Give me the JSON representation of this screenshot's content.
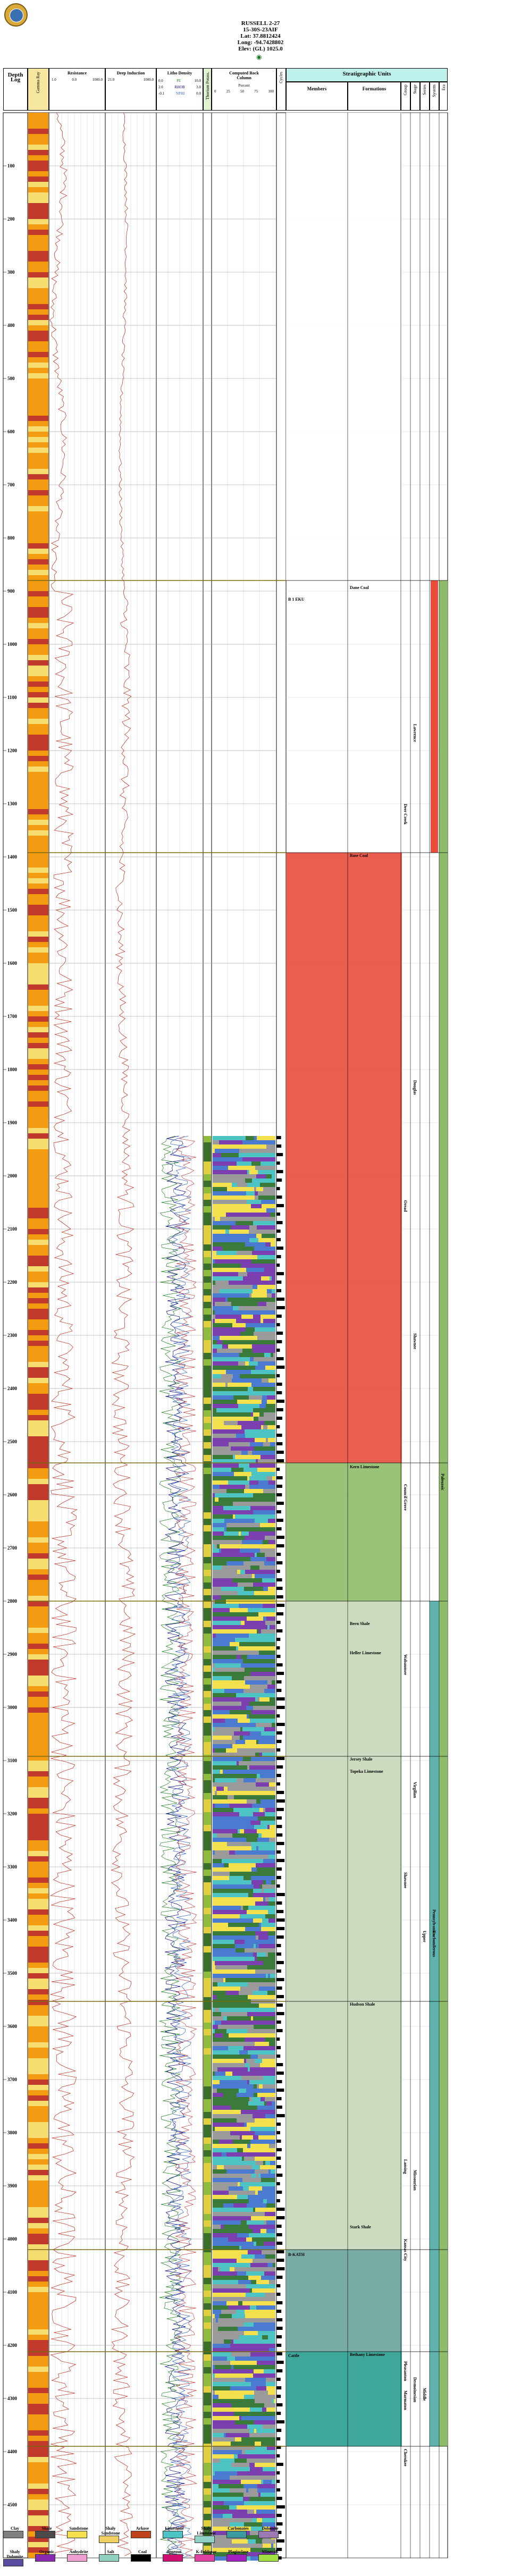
{
  "header": {
    "lines": [
      "RUSSELL 2-27",
      "15-30S-23AIF",
      "Lat: 37.8812424",
      "Long: -94.7428802",
      "Elev: (GL) 1025.0"
    ]
  },
  "columns": {
    "depth_log": "Depth Log",
    "gamma_ray": "Gamma Ray",
    "resistance": "Resistance",
    "resistance_scale": [
      "1.0",
      "0.0",
      "1000.0"
    ],
    "deep_induction": "Deep Induction",
    "deep_induction_scale": [
      "21.0",
      "1000.0"
    ],
    "litho_density": "Litho Density",
    "litho_density_rows": [
      [
        "0.0",
        "PE",
        "10.0"
      ],
      [
        "2.0",
        "RHOB",
        "3.0"
      ],
      [
        "-0.1",
        "NPHI",
        "0.0"
      ]
    ],
    "thorium_potassium": "Thorium Potass.",
    "computed_rock_column": "Computed Rock Column",
    "percent_label": "Percent",
    "percent_ticks": [
      "0",
      "25",
      "50",
      "75",
      "100"
    ],
    "stratigraphic_units": "Stratigraphic Units",
    "members": "Members",
    "formations": "Formations",
    "groups": "Group",
    "stages": "Stage",
    "series": "Series",
    "subsystem": "Subsystem",
    "system": "System",
    "era": "Era",
    "cycles": "Cycles"
  },
  "depth_ticks": [
    "0",
    "100",
    "200",
    "300",
    "400",
    "500",
    "600",
    "700",
    "800",
    "900",
    "1000",
    "1100",
    "1200",
    "1300",
    "1400",
    "1500",
    "1600",
    "1700",
    "1800",
    "1900",
    "2000",
    "2100",
    "2200",
    "2300",
    "2400",
    "2500",
    "2600",
    "2700",
    "2800",
    "2900",
    "3000",
    "3100",
    "3200",
    "3300",
    "3400",
    "3500",
    "3600",
    "3700",
    "3800",
    "3900",
    "4000",
    "4100",
    "4200",
    "4300",
    "4400",
    "4500"
  ],
  "formations_text": [
    {
      "label": "Dane Coal",
      "d": 888
    },
    {
      "label": "Base Coal",
      "d": 1392
    },
    {
      "label": "Kern Limestone",
      "d": 2542
    },
    {
      "label": "Bern Shale",
      "d": 2837
    },
    {
      "label": "Heller Limestone",
      "d": 2892
    },
    {
      "label": "Jersey Shale",
      "d": 3092
    },
    {
      "label": "Topeka Limestone",
      "d": 3115
    },
    {
      "label": "Hudson Shale",
      "d": 3553
    },
    {
      "label": "Stark Shale",
      "d": 3972
    },
    {
      "label": "Bethany Limestone",
      "d": 4212
    }
  ],
  "members_text": [
    {
      "label": "B 1 EKU",
      "d": 910
    },
    {
      "label": "B-KATH",
      "d": 4024
    },
    {
      "label": "Cattle",
      "d": 4214
    }
  ],
  "group_text": [
    {
      "label": "Deer Creek",
      "d": 1300
    },
    {
      "label": "Oread",
      "d": 2046
    },
    {
      "label": "Council Grove",
      "d": 2580
    },
    {
      "label": "Wabaunsee",
      "d": 2900
    },
    {
      "label": "Shawnee",
      "d": 3310
    },
    {
      "label": "Lansing",
      "d": 3850
    },
    {
      "label": "Kansas City",
      "d": 4000
    },
    {
      "label": "Pleasanton",
      "d": 4230
    },
    {
      "label": "Marmaton",
      "d": 4285
    },
    {
      "label": "Cherokee",
      "d": 4395
    }
  ],
  "stage_text": [
    {
      "label": "Lawrence",
      "d": 1150
    },
    {
      "label": "Douglas",
      "d": 1820
    },
    {
      "label": "Shawnee",
      "d": 2296
    },
    {
      "label": "Virgilian",
      "d": 3140
    },
    {
      "label": "Missourian",
      "d": 3870
    },
    {
      "label": "Desmoinesian",
      "d": 4260
    }
  ],
  "series_text": [
    {
      "label": "Upper",
      "d": 3420
    },
    {
      "label": "Middle",
      "d": 4280
    }
  ],
  "system_text": [
    {
      "label": "Pennsylvanian",
      "d": 3380
    },
    {
      "label": "Carboniferous",
      "d": 3420
    }
  ],
  "era_text": [
    {
      "label": "Paleozoic",
      "d": 2560
    }
  ],
  "legend": {
    "row1": [
      "Clay",
      "Shale",
      "Sandstone",
      "Shaly Sandstone",
      "Arkose",
      "Limestone",
      "Shaly Limestone",
      "Carbonates",
      "Dolomite"
    ],
    "row2": [
      "Shaly Dolomite",
      "Organic",
      "Anhydrite",
      "Salt",
      "Coal",
      "Igneous",
      "K-Feldspar",
      "Plagioclase",
      "Minerals"
    ]
  },
  "colors": {
    "gr_high": "#c0392b",
    "gr_mid": "#f39c12",
    "gr_low": "#f7dc6f",
    "curve": "#c0392b",
    "strat_header": "#bdf0ea",
    "lith_yellow": "#f4e04d",
    "lith_blue": "#4a7bd0",
    "lith_teal": "#4dc3c3",
    "lith_gray": "#9a9a9a",
    "band_red": "#e74c3c",
    "band_green": "#8fbc6a",
    "band_sage": "#c7d7b8",
    "band_teal": "#2a9d8f"
  }
}
